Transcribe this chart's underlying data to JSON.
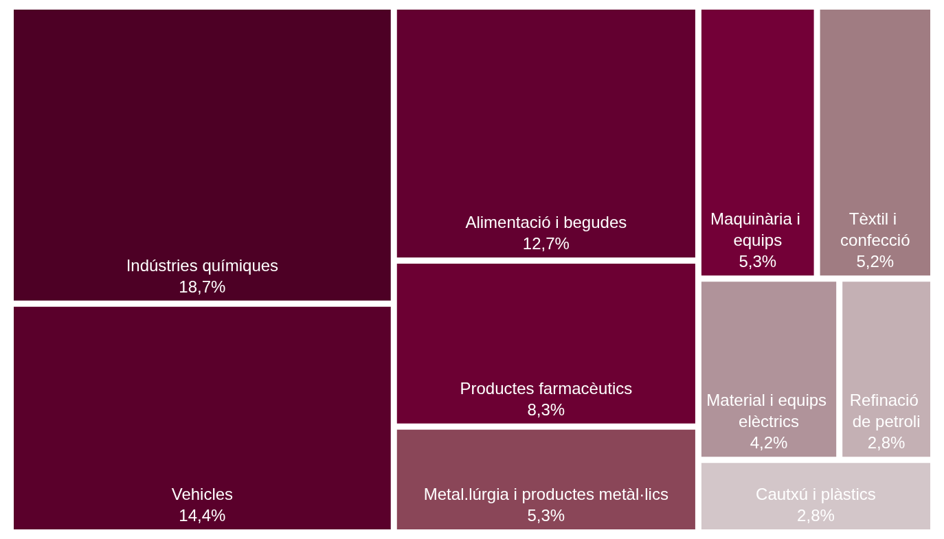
{
  "chart_data": {
    "type": "other",
    "categories": [
      "Indústries químiques",
      "Vehicles",
      "Alimentació i begudes",
      "Productes farmacèutics",
      "Maquinària i equips",
      "Metal.lúrgia i productes metàl·lics",
      "Material i equips elèctrics",
      "Tèxtil i confecció",
      "Cautxú i plàstics",
      "Refinació de petroli"
    ],
    "values": [
      18.7,
      14.4,
      12.7,
      8.3,
      5.3,
      5.3,
      4.2,
      5.2,
      2.8,
      2.8
    ],
    "value_labels": [
      "18,7%",
      "14,4%",
      "12,7%",
      "8,3%",
      "5,3%",
      "5,3%",
      "4,2%",
      "5,2%",
      "2,8%",
      "2,8%"
    ],
    "colors": [
      "#4d0025",
      "#5a002b",
      "#630030",
      "#6c0033",
      "#730037",
      "#8a4658",
      "#b0939a",
      "#a07c82",
      "#d3c6c9",
      "#c4b0b4"
    ]
  }
}
